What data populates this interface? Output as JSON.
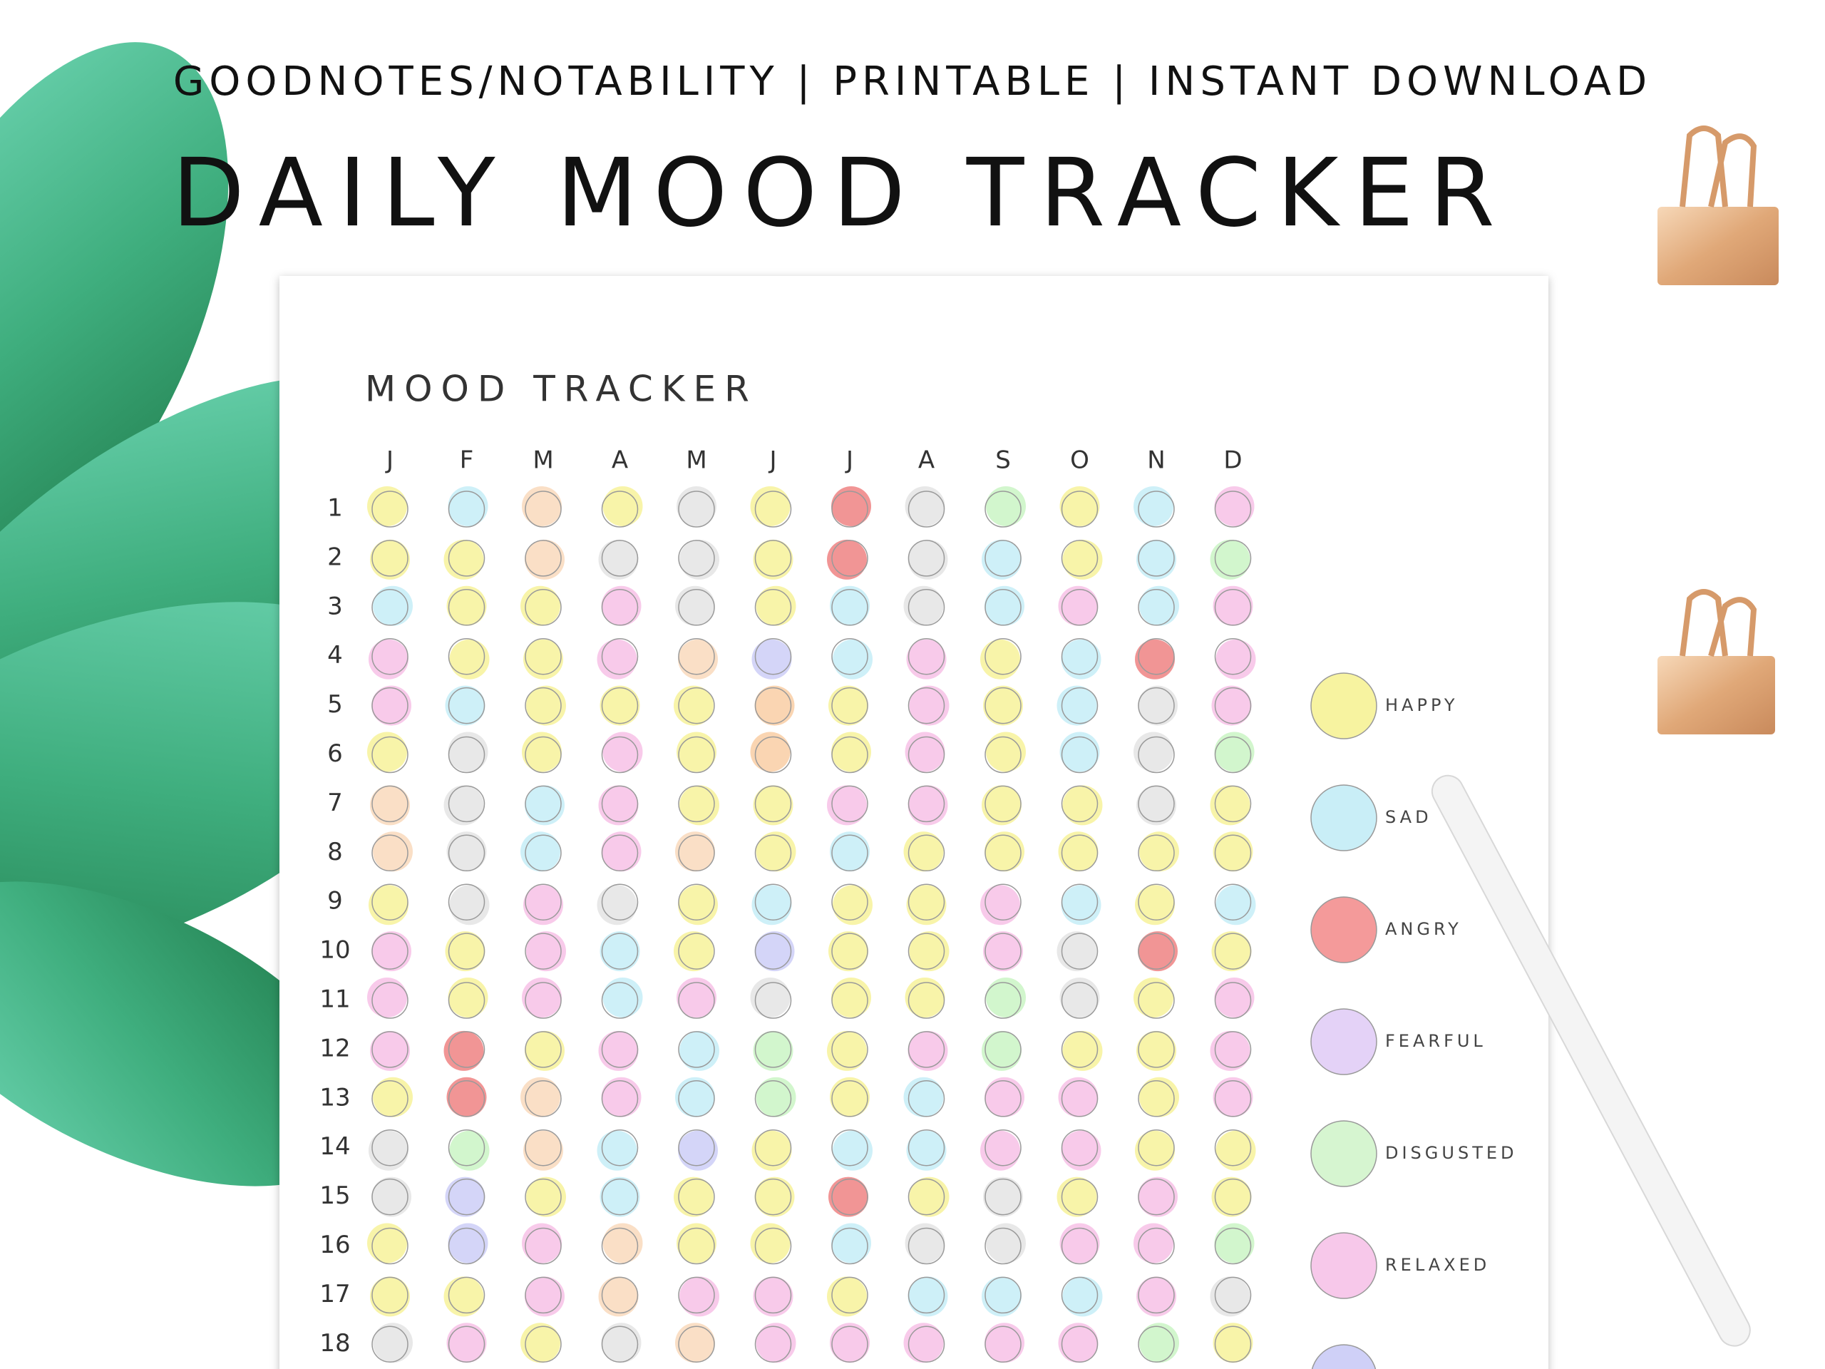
{
  "header": {
    "tagline": "GOODNOTES/NOTABILITY | PRINTABLE | INSTANT DOWNLOAD",
    "title": "DAILY MOOD TRACKER"
  },
  "tracker": {
    "title": "MOOD TRACKER",
    "months": [
      "J",
      "F",
      "M",
      "A",
      "M",
      "J",
      "J",
      "A",
      "S",
      "O",
      "N",
      "D"
    ],
    "days": [
      1,
      2,
      3,
      4,
      5,
      6,
      7,
      8,
      9,
      10,
      11,
      12,
      13,
      14,
      15,
      16,
      17,
      18
    ],
    "cells": [
      [
        "#f7f3a0",
        "#c9eef7",
        "#f9dcc0",
        "#f7f3a0",
        "#e5e5e5",
        "#f7f3a0",
        "#f08a8a",
        "#e5e5e5",
        "#cdf5c8",
        "#f7f3a0",
        "#c9eef7",
        "#f7c4e8"
      ],
      [
        "#f7f3a0",
        "#f7f3a0",
        "#f9dcc0",
        "#e5e5e5",
        "#e5e5e5",
        "#f7f3a0",
        "#f08a8a",
        "#e5e5e5",
        "#c9eef7",
        "#f7f3a0",
        "#c9eef7",
        "#cdf5c8"
      ],
      [
        "#c9eef7",
        "#f7f3a0",
        "#f7f3a0",
        "#f7c4e8",
        "#e5e5e5",
        "#f7f3a0",
        "#c9eef7",
        "#e5e5e5",
        "#c9eef7",
        "#f7c4e8",
        "#c9eef7",
        "#f7c4e8"
      ],
      [
        "#f7c4e8",
        "#f7f3a0",
        "#f7f3a0",
        "#f7c4e8",
        "#f9dcc0",
        "#cfd0f7",
        "#c9eef7",
        "#f7c4e8",
        "#f7f3a0",
        "#c9eef7",
        "#f08a8a",
        "#f7c4e8"
      ],
      [
        "#f7c4e8",
        "#c9eef7",
        "#f7f3a0",
        "#f7f3a0",
        "#f7f3a0",
        "#f9d0aa",
        "#f7f3a0",
        "#f7c4e8",
        "#f7f3a0",
        "#c9eef7",
        "#e5e5e5",
        "#f7c4e8"
      ],
      [
        "#f7f3a0",
        "#e5e5e5",
        "#f7f3a0",
        "#f7c4e8",
        "#f7f3a0",
        "#f9d0aa",
        "#f7f3a0",
        "#f7c4e8",
        "#f7f3a0",
        "#c9eef7",
        "#e5e5e5",
        "#cdf5c8"
      ],
      [
        "#f9dcc0",
        "#e5e5e5",
        "#c9eef7",
        "#f7c4e8",
        "#f7f3a0",
        "#f7f3a0",
        "#f7c4e8",
        "#f7c4e8",
        "#f7f3a0",
        "#f7f3a0",
        "#e5e5e5",
        "#f7f3a0"
      ],
      [
        "#f9dcc0",
        "#e5e5e5",
        "#c9eef7",
        "#f7c4e8",
        "#f9dcc0",
        "#f7f3a0",
        "#c9eef7",
        "#f7f3a0",
        "#f7f3a0",
        "#f7f3a0",
        "#f7f3a0",
        "#f7f3a0"
      ],
      [
        "#f7f3a0",
        "#e5e5e5",
        "#f7c4e8",
        "#e5e5e5",
        "#f7f3a0",
        "#c9eef7",
        "#f7f3a0",
        "#f7f3a0",
        "#f7c4e8",
        "#c9eef7",
        "#f7f3a0",
        "#c9eef7"
      ],
      [
        "#f7c4e8",
        "#f7f3a0",
        "#f7c4e8",
        "#c9eef7",
        "#f7f3a0",
        "#cfd0f7",
        "#f7f3a0",
        "#f7f3a0",
        "#f7c4e8",
        "#e5e5e5",
        "#f08a8a",
        "#f7f3a0"
      ],
      [
        "#f7c4e8",
        "#f7f3a0",
        "#f7c4e8",
        "#c9eef7",
        "#f7c4e8",
        "#e5e5e5",
        "#f7f3a0",
        "#f7f3a0",
        "#cdf5c8",
        "#e5e5e5",
        "#f7f3a0",
        "#f7c4e8"
      ],
      [
        "#f7c4e8",
        "#f08a8a",
        "#f7f3a0",
        "#f7c4e8",
        "#c9eef7",
        "#cdf5c8",
        "#f7f3a0",
        "#f7c4e8",
        "#cdf5c8",
        "#f7f3a0",
        "#f7f3a0",
        "#f7c4e8"
      ],
      [
        "#f7f3a0",
        "#f08a8a",
        "#f9dcc0",
        "#f7c4e8",
        "#c9eef7",
        "#cdf5c8",
        "#f7f3a0",
        "#c9eef7",
        "#f7c4e8",
        "#f7c4e8",
        "#f7f3a0",
        "#f7c4e8"
      ],
      [
        "#e5e5e5",
        "#cdf5c8",
        "#f9dcc0",
        "#c9eef7",
        "#cfd0f7",
        "#f7f3a0",
        "#c9eef7",
        "#c9eef7",
        "#f7c4e8",
        "#f7c4e8",
        "#f7f3a0",
        "#f7f3a0"
      ],
      [
        "#e5e5e5",
        "#cfd0f7",
        "#f7f3a0",
        "#c9eef7",
        "#f7f3a0",
        "#f7f3a0",
        "#f08a8a",
        "#f7f3a0",
        "#e5e5e5",
        "#f7f3a0",
        "#f7c4e8",
        "#f7f3a0"
      ],
      [
        "#f7f3a0",
        "#cfd0f7",
        "#f7c4e8",
        "#f9dcc0",
        "#f7f3a0",
        "#f7f3a0",
        "#c9eef7",
        "#e5e5e5",
        "#e5e5e5",
        "#f7c4e8",
        "#f7c4e8",
        "#cdf5c8"
      ],
      [
        "#f7f3a0",
        "#f7f3a0",
        "#f7c4e8",
        "#f9dcc0",
        "#f7c4e8",
        "#f7c4e8",
        "#f7f3a0",
        "#c9eef7",
        "#c9eef7",
        "#c9eef7",
        "#f7c4e8",
        "#e5e5e5"
      ],
      [
        "#e5e5e5",
        "#f7c4e8",
        "#f7f3a0",
        "#e5e5e5",
        "#f9dcc0",
        "#f7c4e8",
        "#f7c4e8",
        "#f7c4e8",
        "#f7c4e8",
        "#f7c4e8",
        "#cdf5c8",
        "#f7f3a0"
      ]
    ]
  },
  "legend": [
    {
      "label": "HAPPY",
      "color": "#f7f3a0"
    },
    {
      "label": "SAD",
      "color": "#c9eef7"
    },
    {
      "label": "ANGRY",
      "color": "#f49a9a"
    },
    {
      "label": "FEARFUL",
      "color": "#e4d2f7"
    },
    {
      "label": "DISGUSTED",
      "color": "#d6f5d0"
    },
    {
      "label": "RELAXED",
      "color": "#f7c8ea"
    },
    {
      "color": "#cfd0f7"
    }
  ]
}
